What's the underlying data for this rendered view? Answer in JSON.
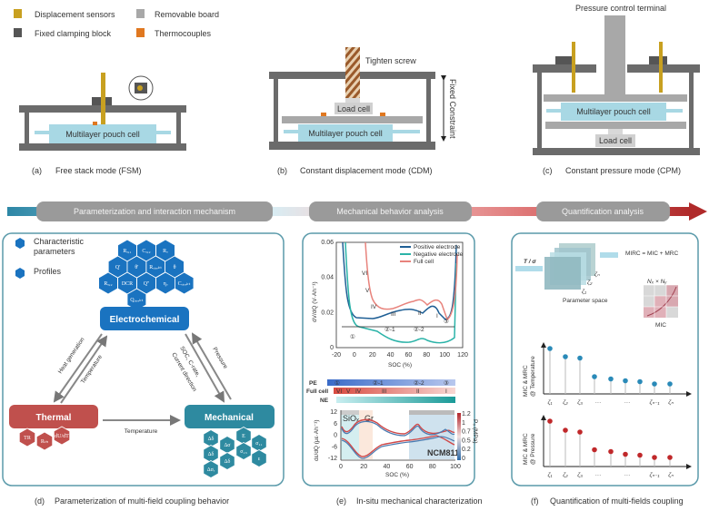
{
  "legend": [
    {
      "label": "Displacement sensors",
      "color": "#c8a020"
    },
    {
      "label": "Removable board",
      "color": "#a8a8a8"
    },
    {
      "label": "Fixed clamping block",
      "color": "#555555"
    },
    {
      "label": "Thermocouples",
      "color": "#e07820"
    }
  ],
  "panel_a": {
    "letter": "(a)",
    "caption": "Free stack mode (FSM)",
    "cell": "Multilayer pouch cell"
  },
  "panel_b": {
    "letter": "(b)",
    "caption": "Constant displacement mode (CDM)",
    "cell": "Multilayer pouch cell",
    "load_cell": "Load cell",
    "screw": "Tighten screw",
    "constraint": "Fixed Constraint"
  },
  "panel_c": {
    "letter": "(c)",
    "caption": "Constant pressure mode (CPM)",
    "cell": "Multilayer pouch cell",
    "load_cell": "Load cell",
    "terminal": "Pressure control terminal"
  },
  "banner": {
    "steps": [
      "Parameterization and interaction mechanism",
      "Mechanical behavior analysis",
      "Quantification analysis"
    ]
  },
  "panel_d": {
    "letter": "(d)",
    "caption": "Parameterization of multi-field coupling behavior",
    "legend": {
      "params": "Characteristic",
      "params2": "parameters",
      "profiles": "Profiles"
    },
    "electrochemical": "Electrochemical",
    "thermal": "Thermal",
    "mechanical": "Mechanical",
    "arrows": {
      "heat": "Heat generation",
      "temp_left": "Temperature",
      "soc": "SOC, C-rate,",
      "current": "Current direction",
      "pressure": "Pressure",
      "temp_bottom": "Temperature"
    },
    "electro_hex": [
      "Cₐ,₂",
      "Rₐ,₁",
      "Rₒ",
      "Q'",
      "Rₒᵢᵣₑₖₜ",
      "Q''",
      "θ'",
      "Cₒᵢᵣₑₖₜ",
      "Rₐ,₂",
      "DCR",
      "θ",
      "Qₒᵢᵣₑₖₜ",
      "ηₒ"
    ],
    "thermal_hex": [
      "TR",
      "Rₜₕ",
      "dU/dT"
    ],
    "mech_hex": [
      "Δδ",
      "Δσ",
      "E",
      "σ₁₁",
      "Δδ",
      "σ₁₃",
      "Δδ",
      "Δσᵣ",
      "ε"
    ]
  },
  "panel_e": {
    "letter": "(e)",
    "caption": "In-situ mechanical characterization",
    "top_chart": {
      "ylabel": "dV/dQ (V·Ah⁻¹)",
      "xlabel": "SOC (%)",
      "xticks": [
        "-20",
        "0",
        "20",
        "40",
        "60",
        "80",
        "100",
        "120"
      ],
      "yticks": [
        "0",
        "0.02",
        "0.04",
        "0.06"
      ],
      "series": [
        {
          "name": "Positive electrode",
          "color": "#1f5f95"
        },
        {
          "name": "Negative electrode",
          "color": "#2bb3a8"
        },
        {
          "name": "Full cell",
          "color": "#e8837c"
        }
      ],
      "regions": [
        "VI",
        "V",
        "IV",
        "III",
        "II",
        "I"
      ],
      "phases": [
        "①",
        "②-1",
        "②-2",
        "③"
      ]
    },
    "bars": {
      "pe": "PE",
      "full": "Full cell",
      "ne": "NE",
      "pe_labels": [
        "①",
        "②-1",
        "②-2",
        "③"
      ],
      "full_labels": [
        "VI",
        "V",
        "IV",
        "III",
        "II",
        "I"
      ]
    },
    "bottom_chart": {
      "ylabel": "dε/dQ (με·Ah⁻¹)",
      "xlabel": "SOC (%)",
      "xticks": [
        "0",
        "20",
        "40",
        "60",
        "80",
        "100"
      ],
      "yticks": [
        "12",
        "6",
        "0",
        "-6",
        "-12"
      ],
      "regions": [
        "SiOₓ",
        "Gr",
        "NCM811"
      ],
      "colorbar_label": "P₀ (MPa)",
      "colorbar_ticks": [
        "1.2",
        "1",
        "0.7",
        "0.5",
        "0.2",
        "0"
      ]
    }
  },
  "panel_f": {
    "letter": "(f)",
    "caption": "Quantification of multi-fields coupling",
    "input": "T / σ",
    "param_space": "Parameter space",
    "zetas_stack": [
      "ζ₁",
      "ζ₂",
      "ζₙ"
    ],
    "formula": "MIRC = MIC + MRC",
    "grid_label": "Nₓ × Nᵧ",
    "mic": "MIC",
    "chart1_ylabel": "MIC & MRC",
    "chart1_ylabel2": "@ Temperature",
    "chart2_ylabel": "MIC & MRC",
    "chart2_ylabel2": "@ Pressure",
    "xlabels": [
      "ζ₁",
      "ζ₂",
      "ζ₃",
      "···",
      "···",
      "ζₙ₋₁",
      "ζₙ"
    ],
    "temp_color": "#2a8ab8",
    "pressure_color": "#c0282a",
    "temp_values": [
      1.0,
      0.82,
      0.79,
      0.38,
      0.33,
      0.29,
      0.27,
      0.22,
      0.22
    ],
    "pressure_values": [
      1.0,
      0.8,
      0.76,
      0.37,
      0.33,
      0.27,
      0.25,
      0.2,
      0.2
    ]
  }
}
